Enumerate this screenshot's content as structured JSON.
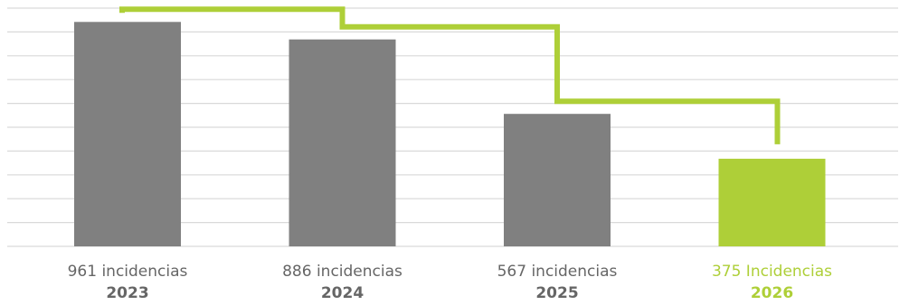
{
  "chart_data": {
    "type": "bar",
    "categories": [
      "2023",
      "2024",
      "2025",
      "2026"
    ],
    "values": [
      961,
      886,
      567,
      375
    ],
    "value_labels": [
      "961 incidencias",
      "886 incidencias",
      "567 incidencias",
      "375 Incidencias"
    ],
    "ylim": [
      0,
      1020
    ],
    "grid": true,
    "legend": "none",
    "colors": {
      "bar": "#808080",
      "highlight": "#aecf38",
      "connector": "#aecf38",
      "label": "#666666",
      "gridline": "#d9d9d9"
    },
    "highlight_index": 3,
    "connector_line": true
  }
}
